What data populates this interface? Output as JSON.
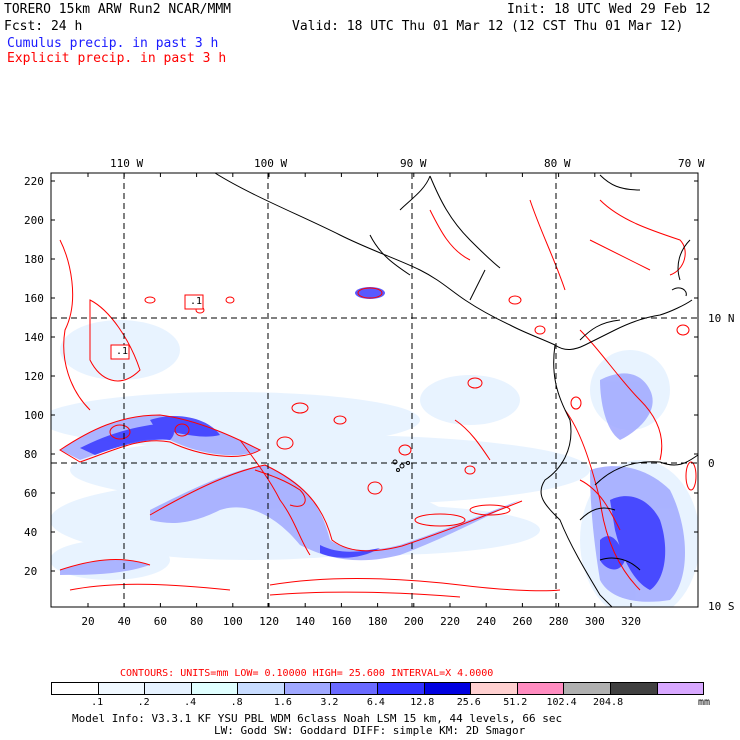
{
  "header": {
    "line1_left": "TORERO  15km ARW   Run2    NCAR/MMM",
    "line1_right": "Init: 18 UTC Wed 29 Feb 12",
    "line2_left": "Fcst:   24 h",
    "line2_right": "Valid: 18 UTC Thu 01 Mar 12 (12 CST Thu 01 Mar 12)",
    "legend_cumulus": "Cumulus precip. in past 3 h",
    "legend_explicit": "Explicit precip. in past 3 h"
  },
  "map": {
    "lon_labels": [
      "110 W",
      "100 W",
      "90 W",
      "80 W",
      "70 W"
    ],
    "lat_labels": [
      "10 N",
      "0",
      "10 S"
    ],
    "y_ticks": [
      "220",
      "200",
      "180",
      "160",
      "140",
      "120",
      "100",
      "80",
      "60",
      "40",
      "20"
    ],
    "x_ticks": [
      "20",
      "40",
      "60",
      "80",
      "100",
      "120",
      "140",
      "160",
      "180",
      "200",
      "220",
      "240",
      "260",
      "280",
      "300",
      "320"
    ],
    "contour_labels": [
      ".1",
      ".1"
    ]
  },
  "footer": {
    "contours_info": "CONTOURS:  UNITS=mm  LOW= 0.10000     HIGH=  25.600     INTERVAL=X  4.0000",
    "colorbar_labels": [
      ".1",
      ".2",
      ".4",
      ".8",
      "1.6",
      "3.2",
      "6.4",
      "12.8",
      "25.6",
      "51.2",
      "102.4",
      "204.8"
    ],
    "colorbar_unit": "mm",
    "colorbar_colors": [
      "#ffffff",
      "#f0f8ff",
      "#e6f2ff",
      "#e0ffff",
      "#c8dcff",
      "#a0a8ff",
      "#6a6aff",
      "#3030ff",
      "#0000e0",
      "#ffd0d0",
      "#ff8cc0",
      "#b0b0b0",
      "#404040",
      "#d8a8ff"
    ],
    "model_info_1": "Model Info: V3.3.1   KF     YSU PBL   WDM 6class  Noah LSM  15 km,    44 levels,    66 sec",
    "model_info_2": "LW: Godd SW: Goddard DIFF: simple KM: 2D Smagor"
  }
}
